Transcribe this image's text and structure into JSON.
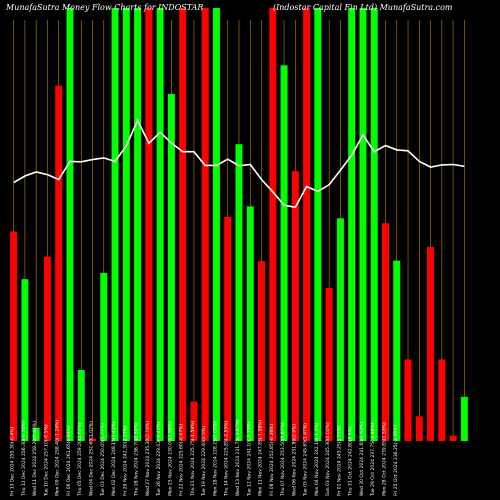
{
  "chart_data": {
    "type": "bar",
    "title": "MunafaSutra  Money Flow  Charts for INDOSTAR",
    "subtitle": "(Indostar Capital Fin Ltd)  MunafaSutra.com",
    "categories": [
      "Fri 13 Dec 2024 255.30(-0.4%)",
      "Thu 12 Dec 2024 256.30(-0.74%)",
      "Wed 11 Dec 2024 258.20(0.43%)",
      "Tue 10 Dec 2024 257.10(-0.5%)",
      "Mon 09 Dec 2024 258.40(-1.24%)",
      "Fri 06 Dec 2024 261.65(0.94%)",
      "Thu 05 Dec 2024 259.20(2.62%)",
      "Wed 04 Dec 2024 252.60(1.02%)",
      "Tue 03 Dec 2024 250.05(0.77%)",
      "Mon 02 Dec 2024 248.15(2.41%)",
      "Fri 29 Nov 2024 242.30(2.37%)",
      "Thu 28 Nov 2024 236.70(0.59%)",
      "Wed 27 Nov 2024 235.30(2.74%)",
      "Tue 26 Nov 2024 229.03(-0.42%)",
      "Mon 25 Nov 2024 230.00(1.95%)",
      "Fri 22 Nov 2024 225.60(-0.07%)",
      "Thu 21 Nov 2024 225.75(-1.59%)",
      "Tue 19 Nov 2024 229.40(0.5%)",
      "Mon 18 Nov 2024 228.25(1.07%)",
      "Thu 14 Nov 2024 225.85(-2.55%)",
      "Wed 13 Nov 2024 231.75(-3.87%)",
      "Tue 12 Nov 2024 241.10(-2.73%)",
      "Mon 11 Nov 2024 247.85(-1.98%)",
      "Fri 08 Nov 2024 252.85(-0.26%)",
      "Thu 07 Nov 2024 253.50(0.67%)",
      "Wed 06 Nov 2024 251.80(2.5%)",
      "Tue 05 Nov 2024 245.65(1.47%)",
      "Mon 04 Nov 2024 242.10(-1.3%)",
      "Sun 03 Nov 2024 245.30(0.02%)",
      "Fri 01 Nov 2024 245.25(1.01%)",
      "Thu 31 Oct 2024 242.80(0.5%)",
      "Wed 30 Oct 2024 241.60(1.62%)",
      "Tue 29 Oct 2024 237.75(-0.88%)",
      "Mon 28 Oct 2024 239.85(1.53%)",
      "Fri 25 Oct 2024 236.25(-2.45%)"
    ],
    "bar_values": [
      0.475,
      0.367,
      0.03,
      0.418,
      0.806,
      0.982,
      0.161,
      0.005,
      0.381,
      0.982,
      0.982,
      0.982,
      0.982,
      0.982,
      0.787,
      0.982,
      0.089,
      0.982,
      0.982,
      0.508,
      0.673,
      0.532,
      0.408,
      0.982,
      0.852,
      0.612,
      0.982,
      0.982,
      0.347,
      0.505,
      0.982,
      0.982,
      0.982,
      0.494,
      0.409,
      0.185,
      0.056,
      0.44,
      0.185,
      0.012,
      0.1
    ],
    "bar_colors": [
      "red",
      "green",
      "green",
      "red",
      "red",
      "green",
      "green",
      "red",
      "green",
      "green",
      "green",
      "green",
      "red",
      "green",
      "green",
      "red",
      "red",
      "red",
      "green",
      "red",
      "green",
      "green",
      "red",
      "red",
      "green",
      "red",
      "red",
      "green",
      "red",
      "green",
      "green",
      "green",
      "green",
      "red",
      "green",
      "red",
      "red",
      "red",
      "red",
      "red",
      "green"
    ],
    "line_values": [
      0.586,
      0.601,
      0.61,
      0.604,
      0.593,
      0.634,
      0.633,
      0.638,
      0.642,
      0.634,
      0.669,
      0.727,
      0.675,
      0.7,
      0.676,
      0.656,
      0.656,
      0.625,
      0.625,
      0.639,
      0.624,
      0.627,
      0.593,
      0.565,
      0.535,
      0.53,
      0.577,
      0.566,
      0.581,
      0.614,
      0.648,
      0.694,
      0.656,
      0.67,
      0.66,
      0.658,
      0.634,
      0.621,
      0.626,
      0.627,
      0.623
    ],
    "ylim": [
      0,
      1
    ],
    "colors": {
      "background": "#000000",
      "green": "#00ff00",
      "red": "#ff0000",
      "line": "#ffffff",
      "gridline": "#b8860b",
      "text": "#ffffff"
    },
    "grid": true,
    "legend": "none"
  }
}
